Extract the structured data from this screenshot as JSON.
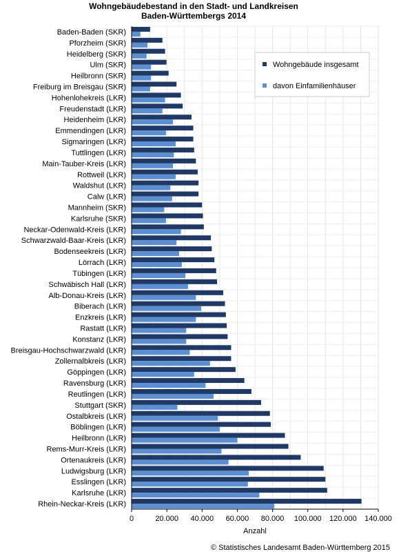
{
  "chart_data": {
    "type": "bar",
    "orientation": "horizontal",
    "title_lines": [
      "Wohngebäudebestand in den Stadt- und Landkreisen",
      "Baden-Württembergs 2014"
    ],
    "xlabel": "Anzahl",
    "xlim": [
      0,
      140000
    ],
    "xticks": [
      0,
      20000,
      40000,
      60000,
      80000,
      100000,
      120000,
      140000
    ],
    "xtick_labels": [
      "0",
      "20.000",
      "40.000",
      "60.000",
      "80.000",
      "100.000",
      "120.000",
      "140.000"
    ],
    "grid": true,
    "legend_position": "top-right",
    "categories": [
      "Baden-Baden (SKR)",
      "Pforzheim (SKR)",
      "Heidelberg (SKR)",
      "Ulm (SKR)",
      "Heilbronn (SKR)",
      "Freiburg im Breisgau (SKR)",
      "Hohenlohekreis (LKR)",
      "Freudenstadt (LKR)",
      "Heidenheim (LKR)",
      "Emmendingen (LKR)",
      "Sigmaringen (LKR)",
      "Tuttlingen (LKR)",
      "Main-Tauber-Kreis (LKR)",
      "Rottweil (LKR)",
      "Waldshut (LKR)",
      "Calw (LKR)",
      "Mannheim (SKR)",
      "Karlsruhe (SKR)",
      "Neckar-Odenwald-Kreis (LKR)",
      "Schwarzwald-Baar-Kreis (LKR)",
      "Bodenseekreis (LKR)",
      "Lörrach (LKR)",
      "Tübingen (LKR)",
      "Schwäbisch Hall (LKR)",
      "Alb-Donau-Kreis (LKR)",
      "Biberach (LKR)",
      "Enzkreis (LKR)",
      "Rastatt (LKR)",
      "Konstanz (LKR)",
      "Breisgau-Hochschwarzwald (LKR)",
      "Zollernalbkreis (LKR)",
      "Göppingen (LKR)",
      "Ravensburg (LKR)",
      "Reutlingen (LKR)",
      "Stuttgart (SKR)",
      "Ostalbkreis (LKR)",
      "Böblingen (LKR)",
      "Heilbronn (LKR)",
      "Rems-Murr-Kreis (LKR)",
      "Ortenaukreis (LKR)",
      "Ludwigsburg (LKR)",
      "Esslingen (LKR)",
      "Karlsruhe (LKR)",
      "Rhein-Neckar-Kreis (LKR)"
    ],
    "series": [
      {
        "name": "Wohngebäude insgesamt",
        "color": "#1f3864",
        "values": [
          10500,
          17500,
          19000,
          19800,
          21000,
          25500,
          28000,
          29000,
          34000,
          35000,
          35000,
          35500,
          36500,
          37500,
          38000,
          38000,
          40000,
          40500,
          41000,
          45000,
          45500,
          47000,
          48000,
          48500,
          52000,
          53000,
          53500,
          54000,
          54500,
          56500,
          56500,
          59000,
          64000,
          68000,
          73500,
          78500,
          79000,
          87000,
          89000,
          96000,
          109000,
          110000,
          111000,
          130500
        ]
      },
      {
        "name": "davon Einfamilienhäuser",
        "color": "#5b8fd1",
        "values": [
          5000,
          9000,
          8500,
          11000,
          11000,
          10500,
          19000,
          17500,
          23500,
          19500,
          25000,
          24000,
          23500,
          25000,
          22000,
          23000,
          18500,
          19500,
          28000,
          25500,
          27000,
          28500,
          30500,
          32000,
          36500,
          39500,
          36500,
          31000,
          31000,
          33000,
          44500,
          35500,
          42000,
          46500,
          26000,
          49000,
          50000,
          60000,
          51000,
          55000,
          66500,
          66000,
          72500,
          81000
        ]
      }
    ]
  },
  "footer": {
    "copyright": "© Statistisches Landesamt Baden-Württemberg 2015"
  }
}
